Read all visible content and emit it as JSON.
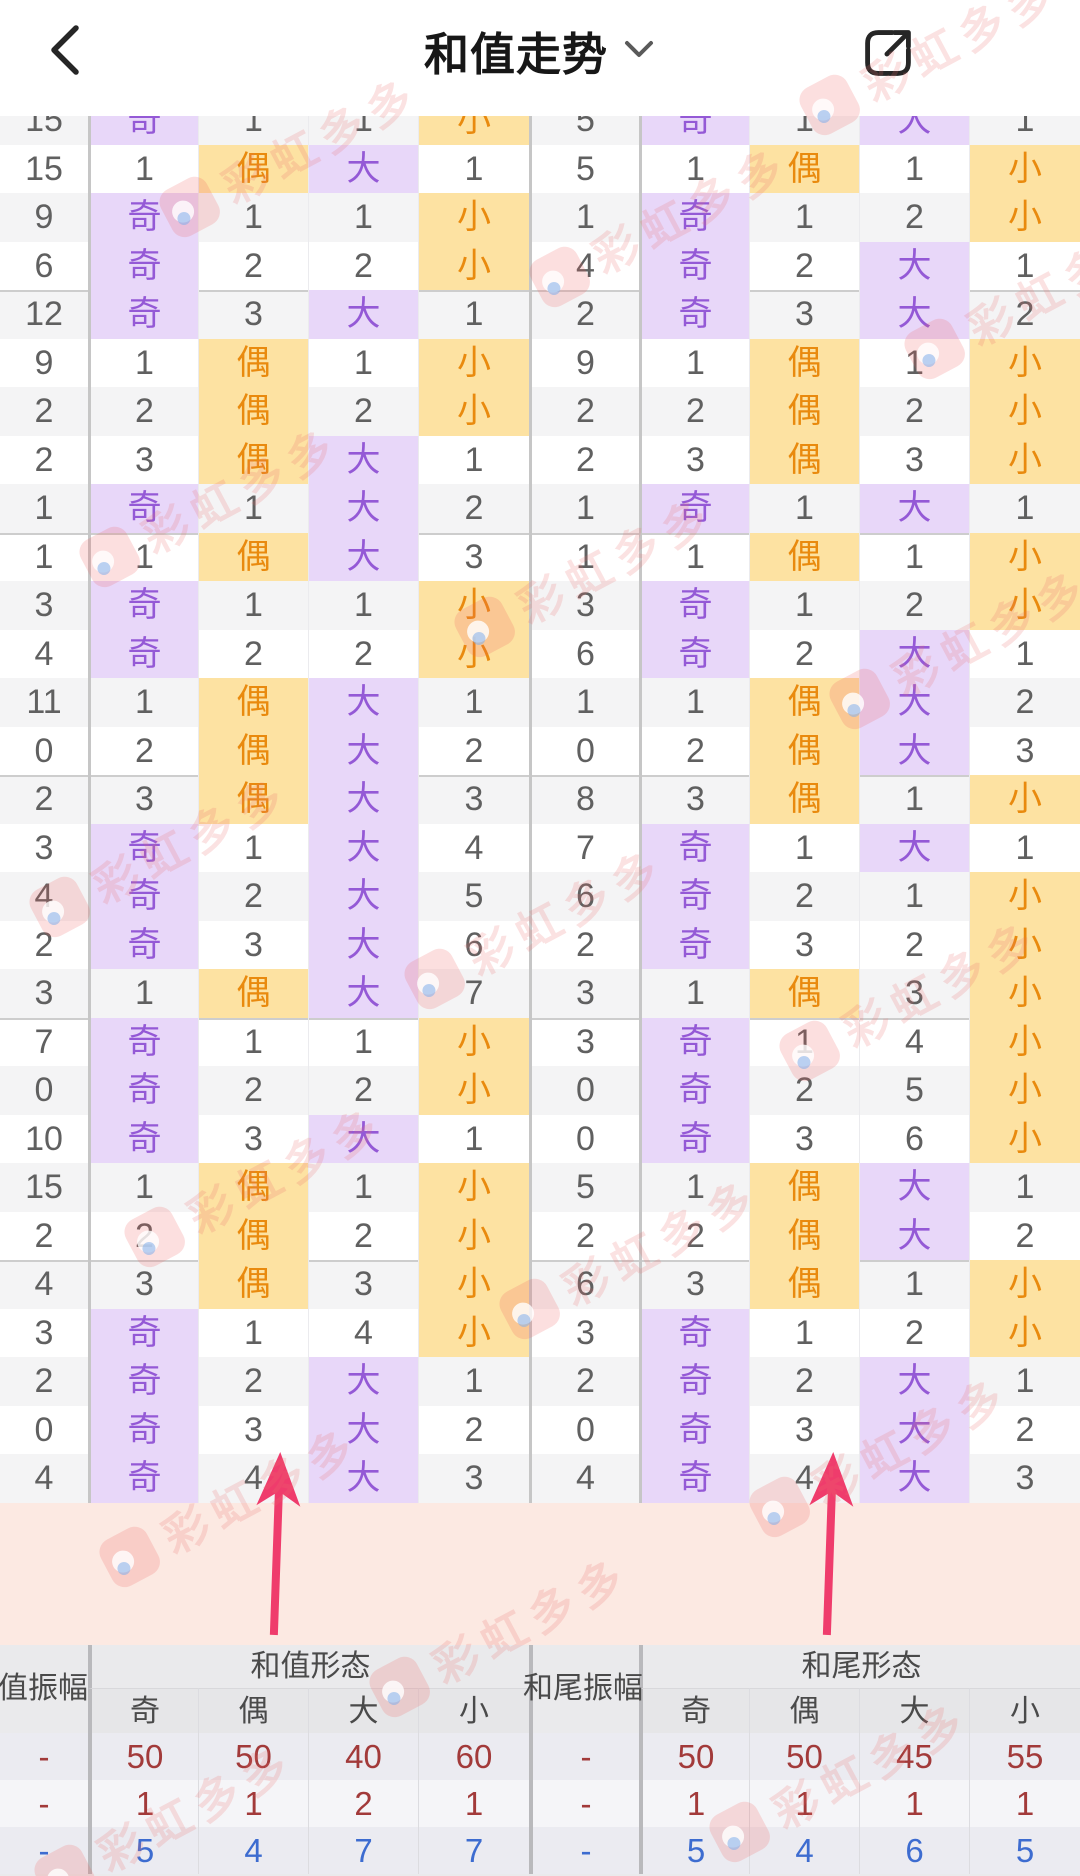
{
  "header": {
    "title": "和值走势"
  },
  "colors": {
    "odd_big_bg": "#e8d7f9",
    "odd_big_text": "#9459d6",
    "even_small_bg": "#fde2a2",
    "even_small_text": "#e98a0e",
    "pink_band": "#fce9e2",
    "arrow": "#ef3c6c",
    "stat_red": "#a23a3a",
    "stat_blue": "#3d6cd0"
  },
  "trend_table": {
    "rows": [
      [
        "15",
        "奇",
        "1",
        "1",
        "小",
        "5",
        "奇",
        "1",
        "大",
        "1"
      ],
      [
        "15",
        "1",
        "偶",
        "大",
        "1",
        "5",
        "1",
        "偶",
        "1",
        "小"
      ],
      [
        "9",
        "奇",
        "1",
        "1",
        "小",
        "1",
        "奇",
        "1",
        "2",
        "小"
      ],
      [
        "6",
        "奇",
        "2",
        "2",
        "小",
        "4",
        "奇",
        "2",
        "大",
        "1"
      ],
      [
        "12",
        "奇",
        "3",
        "大",
        "1",
        "2",
        "奇",
        "3",
        "大",
        "2"
      ],
      [
        "9",
        "1",
        "偶",
        "1",
        "小",
        "9",
        "1",
        "偶",
        "1",
        "小"
      ],
      [
        "2",
        "2",
        "偶",
        "2",
        "小",
        "2",
        "2",
        "偶",
        "2",
        "小"
      ],
      [
        "2",
        "3",
        "偶",
        "大",
        "1",
        "2",
        "3",
        "偶",
        "3",
        "小"
      ],
      [
        "1",
        "奇",
        "1",
        "大",
        "2",
        "1",
        "奇",
        "1",
        "大",
        "1"
      ],
      [
        "1",
        "1",
        "偶",
        "大",
        "3",
        "1",
        "1",
        "偶",
        "1",
        "小"
      ],
      [
        "3",
        "奇",
        "1",
        "1",
        "小",
        "3",
        "奇",
        "1",
        "2",
        "小"
      ],
      [
        "4",
        "奇",
        "2",
        "2",
        "小",
        "6",
        "奇",
        "2",
        "大",
        "1"
      ],
      [
        "11",
        "1",
        "偶",
        "大",
        "1",
        "1",
        "1",
        "偶",
        "大",
        "2"
      ],
      [
        "0",
        "2",
        "偶",
        "大",
        "2",
        "0",
        "2",
        "偶",
        "大",
        "3"
      ],
      [
        "2",
        "3",
        "偶",
        "大",
        "3",
        "8",
        "3",
        "偶",
        "1",
        "小"
      ],
      [
        "3",
        "奇",
        "1",
        "大",
        "4",
        "7",
        "奇",
        "1",
        "大",
        "1"
      ],
      [
        "4",
        "奇",
        "2",
        "大",
        "5",
        "6",
        "奇",
        "2",
        "1",
        "小"
      ],
      [
        "2",
        "奇",
        "3",
        "大",
        "6",
        "2",
        "奇",
        "3",
        "2",
        "小"
      ],
      [
        "3",
        "1",
        "偶",
        "大",
        "7",
        "3",
        "1",
        "偶",
        "3",
        "小"
      ],
      [
        "7",
        "奇",
        "1",
        "1",
        "小",
        "3",
        "奇",
        "1",
        "4",
        "小"
      ],
      [
        "0",
        "奇",
        "2",
        "2",
        "小",
        "0",
        "奇",
        "2",
        "5",
        "小"
      ],
      [
        "10",
        "奇",
        "3",
        "大",
        "1",
        "0",
        "奇",
        "3",
        "6",
        "小"
      ],
      [
        "15",
        "1",
        "偶",
        "1",
        "小",
        "5",
        "1",
        "偶",
        "大",
        "1"
      ],
      [
        "2",
        "2",
        "偶",
        "2",
        "小",
        "2",
        "2",
        "偶",
        "大",
        "2"
      ],
      [
        "4",
        "3",
        "偶",
        "3",
        "小",
        "6",
        "3",
        "偶",
        "1",
        "小"
      ],
      [
        "3",
        "奇",
        "1",
        "4",
        "小",
        "3",
        "奇",
        "1",
        "2",
        "小"
      ],
      [
        "2",
        "奇",
        "2",
        "大",
        "1",
        "2",
        "奇",
        "2",
        "大",
        "1"
      ],
      [
        "0",
        "奇",
        "3",
        "大",
        "2",
        "0",
        "奇",
        "3",
        "大",
        "2"
      ],
      [
        "4",
        "奇",
        "4",
        "大",
        "3",
        "4",
        "奇",
        "4",
        "大",
        "3"
      ]
    ]
  },
  "summary": {
    "amp_left_label": "和值振幅",
    "pattern_left_label": "和值形态",
    "amp_right_label": "和尾振幅",
    "pattern_right_label": "和尾形态",
    "sub_headers": [
      "奇",
      "偶",
      "大",
      "小"
    ],
    "rows": [
      {
        "values": [
          "-",
          "50",
          "50",
          "40",
          "60",
          "-",
          "50",
          "50",
          "45",
          "55"
        ],
        "color": "red"
      },
      {
        "values": [
          "-",
          "1",
          "1",
          "2",
          "1",
          "-",
          "1",
          "1",
          "1",
          "1"
        ],
        "color": "red"
      },
      {
        "values": [
          "-",
          "5",
          "4",
          "7",
          "7",
          "-",
          "5",
          "4",
          "6",
          "5"
        ],
        "color": "blue"
      }
    ]
  },
  "watermark": {
    "text": "彩虹多多"
  }
}
